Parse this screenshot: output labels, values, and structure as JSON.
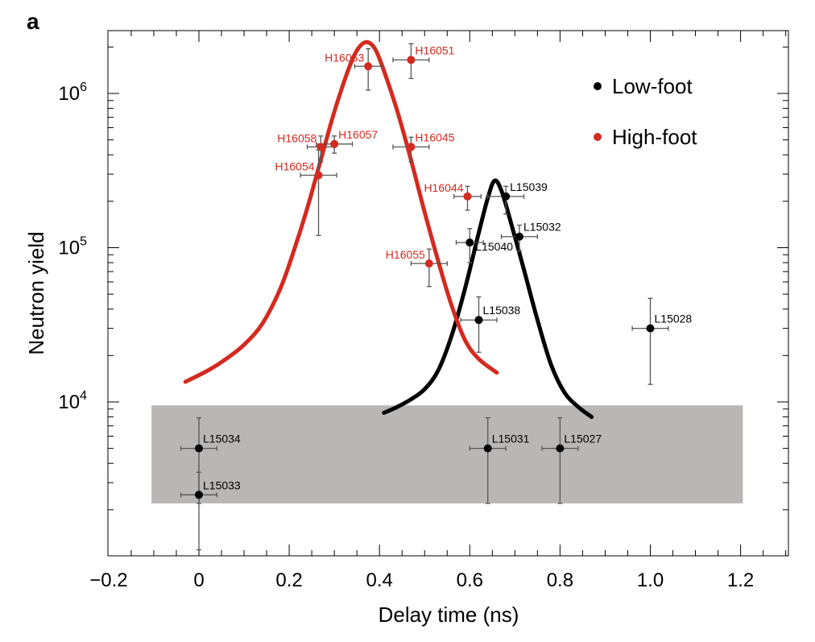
{
  "panel_label": "a",
  "chart_data": {
    "type": "scatter",
    "xlabel": "Delay time (ns)",
    "ylabel": "Neutron yield",
    "xlim": [
      -0.2,
      1.3
    ],
    "ylim": [
      1100,
      2900000
    ],
    "yscale": "log",
    "grid": false,
    "legend_position": "top-right",
    "x_tick_labels": [
      "−0.2",
      "0",
      "0.2",
      "0.4",
      "0.6",
      "0.8",
      "1.0",
      "1.2"
    ],
    "x_tick_values": [
      -0.2,
      0,
      0.2,
      0.4,
      0.6,
      0.8,
      1.0,
      1.2
    ],
    "y_tick_labels": [
      {
        "base": "10",
        "exp": "4",
        "value": 10000
      },
      {
        "base": "10",
        "exp": "5",
        "value": 100000
      },
      {
        "base": "10",
        "exp": "6",
        "value": 1000000
      }
    ],
    "shaded_band": {
      "x": [
        -0.105,
        1.205
      ],
      "y": [
        2200,
        9500
      ],
      "color": "#bab6b6"
    },
    "series": [
      {
        "name": "Low-foot",
        "color": "#000000",
        "points": [
          {
            "label": "L15039",
            "x": 0.68,
            "y": 215000,
            "xerr": 0.04,
            "ylo": 165000,
            "yhi": 250000,
            "label_pos": "upper-right"
          },
          {
            "label": "L15032",
            "x": 0.71,
            "y": 118000,
            "xerr": 0.04,
            "ylo": 95000,
            "yhi": 140000,
            "label_pos": "upper-right"
          },
          {
            "label": "L15040",
            "x": 0.6,
            "y": 108000,
            "xerr": 0.03,
            "ylo": 80000,
            "yhi": 133000,
            "label_pos": "right"
          },
          {
            "label": "L15038",
            "x": 0.62,
            "y": 34000,
            "xerr": 0.04,
            "ylo": 21000,
            "yhi": 48000,
            "label_pos": "upper-right"
          },
          {
            "label": "L15028",
            "x": 1.0,
            "y": 30000,
            "xerr": 0.04,
            "ylo": 13000,
            "yhi": 47000,
            "label_pos": "upper-right"
          },
          {
            "label": "L15034",
            "x": 0.0,
            "y": 5000,
            "xerr": 0.04,
            "ylo": 2200,
            "yhi": 7900,
            "label_pos": "upper-right"
          },
          {
            "label": "L15033",
            "x": 0.0,
            "y": 2500,
            "xerr": 0.04,
            "ylo": 1100,
            "yhi": 3500,
            "label_pos": "upper-right"
          },
          {
            "label": "L15031",
            "x": 0.64,
            "y": 5000,
            "xerr": 0.04,
            "ylo": 2200,
            "yhi": 7900,
            "label_pos": "upper-right"
          },
          {
            "label": "L15027",
            "x": 0.8,
            "y": 5000,
            "xerr": 0.04,
            "ylo": 2200,
            "yhi": 7900,
            "label_pos": "upper-right"
          }
        ],
        "curve": {
          "x": [
            0.41,
            0.44,
            0.47,
            0.5,
            0.53,
            0.56,
            0.59,
            0.62,
            0.64,
            0.655,
            0.67,
            0.69,
            0.72,
            0.75,
            0.78,
            0.81,
            0.84,
            0.87
          ],
          "y": [
            8500,
            9300,
            10400,
            12100,
            16000,
            27000,
            55000,
            125000,
            210000,
            272000,
            235000,
            150000,
            72000,
            34000,
            17500,
            11500,
            9300,
            8000
          ]
        }
      },
      {
        "name": "High-foot",
        "color": "#d42a20",
        "points": [
          {
            "label": "H16053",
            "x": 0.375,
            "y": 1500000,
            "xerr": 0.03,
            "ylo": 1050000,
            "yhi": 1950000,
            "label_pos": "upper-left"
          },
          {
            "label": "H16051",
            "x": 0.47,
            "y": 1650000,
            "xerr": 0.04,
            "ylo": 1250000,
            "yhi": 2100000,
            "label_pos": "upper-right"
          },
          {
            "label": "H16058",
            "x": 0.27,
            "y": 450000,
            "xerr": 0.03,
            "ylo": 360000,
            "yhi": 530000,
            "label_pos": "upper-left"
          },
          {
            "label": "H16057",
            "x": 0.3,
            "y": 470000,
            "xerr": 0.04,
            "ylo": 410000,
            "yhi": 530000,
            "label_pos": "upper-right"
          },
          {
            "label": "H16045",
            "x": 0.47,
            "y": 450000,
            "xerr": 0.04,
            "ylo": 360000,
            "yhi": 520000,
            "label_pos": "upper-right"
          },
          {
            "label": "H16054",
            "x": 0.265,
            "y": 295000,
            "xerr": 0.04,
            "ylo": 120000,
            "yhi": 430000,
            "label_pos": "upper-left"
          },
          {
            "label": "H16044",
            "x": 0.595,
            "y": 215000,
            "xerr": 0.03,
            "ylo": 175000,
            "yhi": 250000,
            "label_pos": "upper-left"
          },
          {
            "label": "H16055",
            "x": 0.51,
            "y": 79000,
            "xerr": 0.04,
            "ylo": 56000,
            "yhi": 98000,
            "label_pos": "upper-left"
          }
        ],
        "curve": {
          "x": [
            -0.03,
            0.02,
            0.06,
            0.1,
            0.14,
            0.18,
            0.21,
            0.24,
            0.27,
            0.3,
            0.33,
            0.35,
            0.37,
            0.39,
            0.41,
            0.44,
            0.47,
            0.5,
            0.53,
            0.56,
            0.59,
            0.62,
            0.66
          ],
          "y": [
            13500,
            16000,
            19000,
            23500,
            32000,
            54000,
            95000,
            180000,
            370000,
            760000,
            1400000,
            1900000,
            2150000,
            1950000,
            1400000,
            760000,
            370000,
            170000,
            82000,
            42000,
            25000,
            19000,
            15500
          ]
        }
      }
    ]
  }
}
